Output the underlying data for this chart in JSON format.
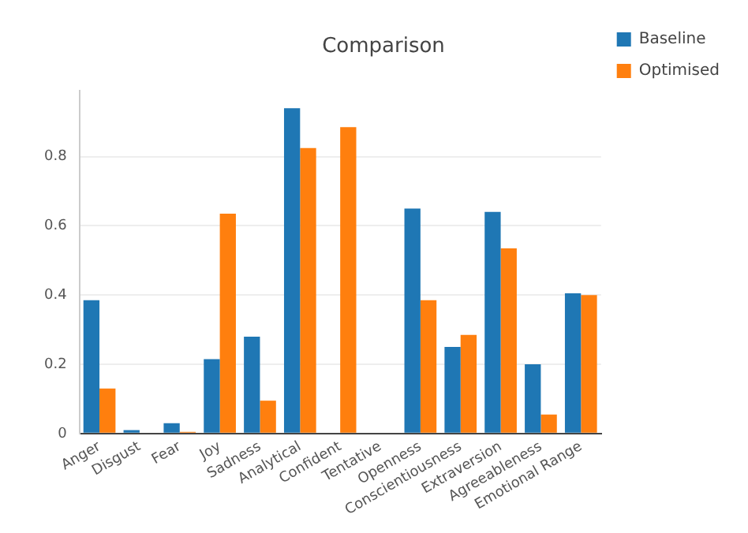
{
  "chart_data": {
    "type": "bar",
    "title": "Comparison",
    "categories": [
      "Anger",
      "Disgust",
      "Fear",
      "Joy",
      "Sadness",
      "Analytical",
      "Confident",
      "Tentative",
      "Openness",
      "Conscientiousness",
      "Extraversion",
      "Agreeableness",
      "Emotional Range"
    ],
    "series": [
      {
        "name": "Baseline",
        "color": "#1f77b4",
        "values": [
          0.385,
          0.01,
          0.03,
          0.215,
          0.28,
          0.94,
          0,
          0,
          0.65,
          0.25,
          0.64,
          0.2,
          0.405
        ]
      },
      {
        "name": "Optimised",
        "color": "#ff7f0e",
        "values": [
          0.13,
          0,
          0.005,
          0.635,
          0.095,
          0.825,
          0.885,
          0,
          0.385,
          0.285,
          0.535,
          0.055,
          0.4
        ]
      }
    ],
    "ylim": [
      0,
      0.99
    ],
    "yticks": [
      0,
      0.2,
      0.4,
      0.6,
      0.8
    ],
    "grid": "y",
    "legend": "top right"
  }
}
